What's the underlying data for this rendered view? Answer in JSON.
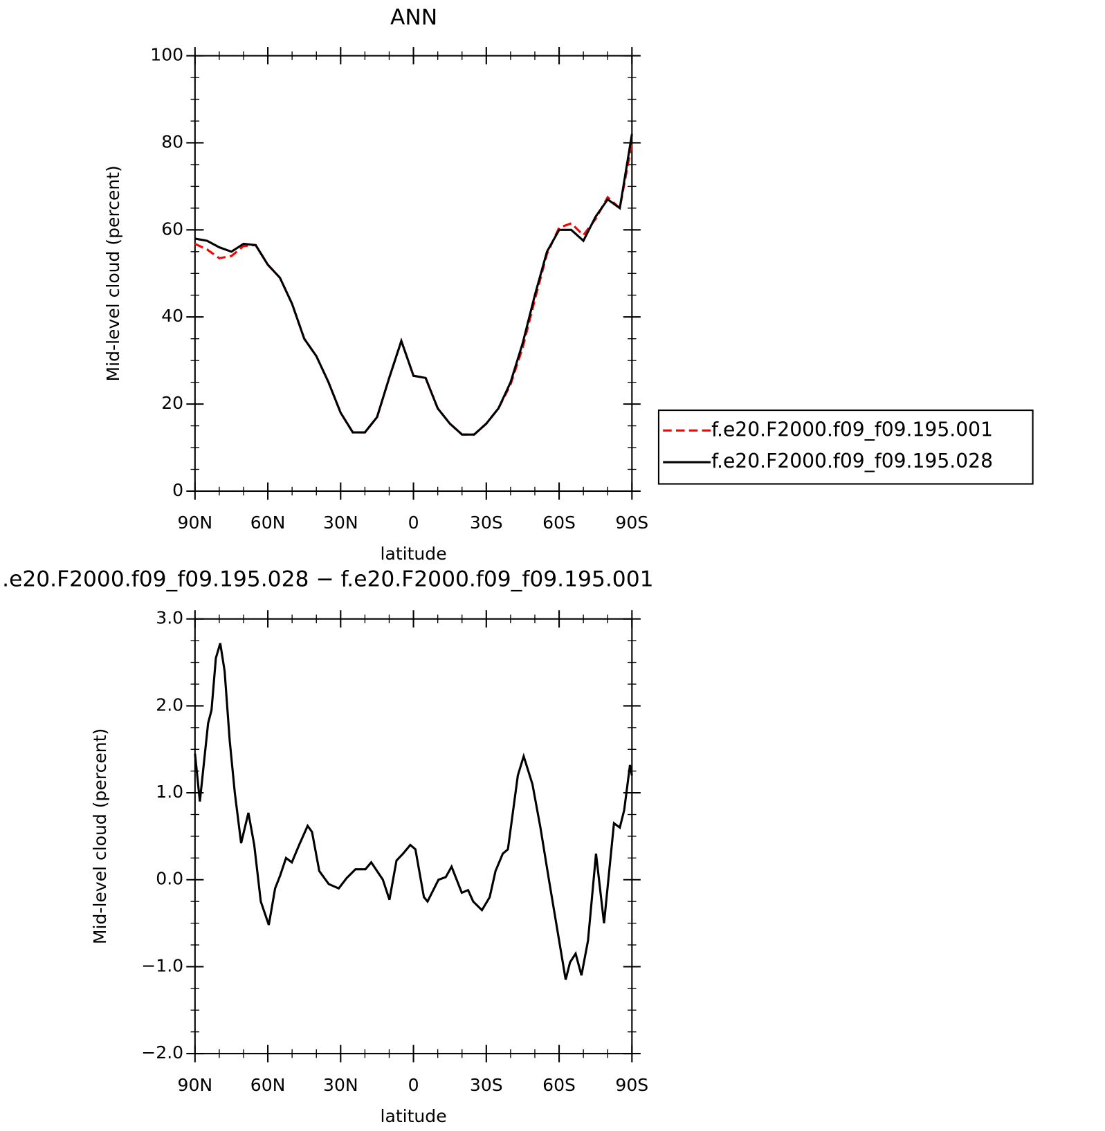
{
  "chart_data": [
    {
      "type": "line",
      "title": "ANN",
      "xlabel": "latitude",
      "ylabel": "Mid-level cloud (percent)",
      "x": [
        90,
        85,
        80,
        75,
        70,
        65,
        60,
        55,
        50,
        45,
        40,
        35,
        30,
        25,
        20,
        15,
        10,
        5,
        0,
        -5,
        -10,
        -15,
        -20,
        -25,
        -30,
        -35,
        -40,
        -45,
        -50,
        -55,
        -60,
        -65,
        -70,
        -75,
        -80,
        -85,
        -90
      ],
      "series": [
        {
          "name": "f.e20.F2000.f09_f09.195.001",
          "color": "#ff0000",
          "linestyle": "dashed",
          "values": [
            56.8,
            55.5,
            53.5,
            54,
            56.3,
            56.5,
            52,
            49,
            43,
            35,
            31,
            25,
            18,
            13.5,
            13.5,
            17,
            26,
            34.5,
            26.5,
            26,
            19,
            15.5,
            13,
            13,
            15.5,
            19,
            24.5,
            33,
            44,
            54.5,
            60.5,
            61.5,
            58.8,
            62.5,
            67.5,
            65,
            80
          ]
        },
        {
          "name": "f.e20.F2000.f09_f09.195.028",
          "color": "#000000",
          "linestyle": "solid",
          "values": [
            58,
            57.5,
            56,
            55,
            56.8,
            56.5,
            52,
            49,
            43,
            35,
            31,
            25,
            18,
            13.5,
            13.5,
            17,
            26,
            34.5,
            26.5,
            26,
            19,
            15.5,
            13,
            13,
            15.5,
            19,
            25,
            34,
            45,
            55,
            60,
            60,
            57.5,
            63,
            67,
            65,
            82
          ]
        }
      ],
      "xlim": [
        90,
        -90
      ],
      "xticks": [
        {
          "value": 90,
          "label": "90N"
        },
        {
          "value": 60,
          "label": "60N"
        },
        {
          "value": 30,
          "label": "30N"
        },
        0,
        {
          "value": -30,
          "label": "30S"
        },
        {
          "value": -60,
          "label": "60S"
        },
        {
          "value": -90,
          "label": "90S"
        }
      ],
      "ylim": [
        0,
        100
      ],
      "yticks": [
        0,
        20,
        40,
        60,
        80,
        100
      ],
      "legend": "right"
    },
    {
      "type": "line",
      "title": ".e20.F2000.f09_f09.195.028 − f.e20.F2000.f09_f09.195.001",
      "xlabel": "latitude",
      "ylabel": "Mid-level cloud (percent)",
      "x": [
        90,
        88,
        84.6,
        83.2,
        81.4,
        79.6,
        77.8,
        75.7,
        73.6,
        71,
        68,
        65.6,
        62.9,
        59.6,
        57,
        54.9,
        52.5,
        50.1,
        47.1,
        43.6,
        41.8,
        38.8,
        34.9,
        30.8,
        27.5,
        23.9,
        19.8,
        17.4,
        12.6,
        9.9,
        7,
        4.3,
        1.3,
        -0.8,
        -4.3,
        -5.8,
        -10.3,
        -13.3,
        -15.7,
        -19.9,
        -22.5,
        -24.6,
        -28.2,
        -31.4,
        -33.8,
        -36.8,
        -38.9,
        -43,
        -45.4,
        -49,
        -52.3,
        -55.8,
        -58.2,
        -62.7,
        -64.5,
        -66.8,
        -69.2,
        -71.9,
        -75.2,
        -78.5,
        -82.6,
        -85,
        -86.8,
        -89.2,
        -90
      ],
      "color": "#000000",
      "values": [
        1.45,
        0.9,
        1.8,
        1.95,
        2.55,
        2.72,
        2.4,
        1.6,
        1.0,
        0.42,
        0.77,
        0.4,
        -0.25,
        -0.52,
        -0.1,
        0.05,
        0.25,
        0.2,
        0.4,
        0.62,
        0.55,
        0.1,
        -0.05,
        -0.1,
        0.02,
        0.12,
        0.12,
        0.2,
        0.0,
        -0.23,
        0.22,
        0.3,
        0.4,
        0.35,
        -0.2,
        -0.25,
        0,
        0.03,
        0.15,
        -0.15,
        -0.12,
        -0.25,
        -0.35,
        -0.2,
        0.1,
        0.3,
        0.35,
        1.2,
        1.42,
        1.1,
        0.6,
        0.0,
        -0.4,
        -1.15,
        -0.95,
        -0.85,
        -1.1,
        -0.7,
        0.3,
        -0.5,
        0.65,
        0.6,
        0.8,
        1.32,
        1.2
      ],
      "xlim": [
        90,
        -90
      ],
      "xticks": [
        {
          "value": 90,
          "label": "90N"
        },
        {
          "value": 60,
          "label": "60N"
        },
        {
          "value": 30,
          "label": "30N"
        },
        0,
        {
          "value": -30,
          "label": "30S"
        },
        {
          "value": -60,
          "label": "60S"
        },
        {
          "value": -90,
          "label": "90S"
        }
      ],
      "ylim": [
        -2,
        3
      ],
      "yticks": [
        {
          "value": -2,
          "label": "−2.0"
        },
        {
          "value": -1,
          "label": "−1.0"
        },
        {
          "value": 0,
          "label": "0.0"
        },
        {
          "value": 1,
          "label": "1.0"
        },
        {
          "value": 2,
          "label": "2.0"
        },
        {
          "value": 3,
          "label": "3.0"
        }
      ]
    }
  ]
}
